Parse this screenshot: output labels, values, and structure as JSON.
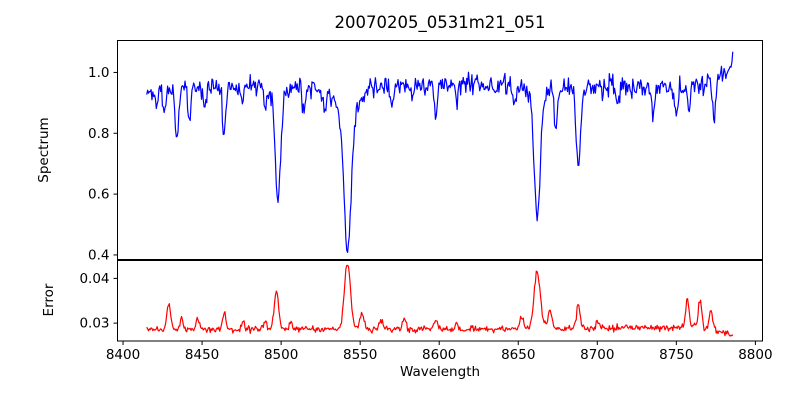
{
  "figure": {
    "title": "20070205_0531m21_051",
    "background_color": "#ffffff",
    "axis_color": "#000000"
  },
  "xaxis": {
    "label": "Wavelength",
    "xlim": [
      8396.5,
      8804.5
    ],
    "ticks": [
      {
        "value": 8400,
        "label": "8400"
      },
      {
        "value": 8450,
        "label": "8450"
      },
      {
        "value": 8500,
        "label": "8500"
      },
      {
        "value": 8550,
        "label": "8550"
      },
      {
        "value": 8600,
        "label": "8600"
      },
      {
        "value": 8650,
        "label": "8650"
      },
      {
        "value": 8700,
        "label": "8700"
      },
      {
        "value": 8750,
        "label": "8750"
      },
      {
        "value": 8800,
        "label": "8800"
      }
    ]
  },
  "chart_data": [
    {
      "type": "line",
      "panel": "top",
      "series_name": "spectrum",
      "ylabel": "Spectrum",
      "color": "#0000ff",
      "ylim": [
        0.385,
        1.105
      ],
      "yticks": [
        {
          "value": 0.4,
          "label": "0.4"
        },
        {
          "value": 0.6,
          "label": "0.6"
        },
        {
          "value": 0.8,
          "label": "0.8"
        },
        {
          "value": 1.0,
          "label": "1.0"
        }
      ],
      "x_range": [
        8415,
        8786
      ],
      "x_step": 0.55,
      "noise_sigma": 0.016,
      "continuum_nodes": [
        [
          8415,
          0.945
        ],
        [
          8445,
          0.952
        ],
        [
          8475,
          0.958
        ],
        [
          8520,
          0.948
        ],
        [
          8560,
          0.954
        ],
        [
          8600,
          0.96
        ],
        [
          8640,
          0.962
        ],
        [
          8665,
          0.955
        ],
        [
          8700,
          0.95
        ],
        [
          8745,
          0.95
        ],
        [
          8765,
          0.955
        ],
        [
          8778,
          0.99
        ],
        [
          8786,
          1.03
        ]
      ],
      "absorption_lines": [
        {
          "center": 8421,
          "depth": 0.05,
          "sigma": 0.9
        },
        {
          "center": 8426,
          "depth": 0.09,
          "sigma": 0.9
        },
        {
          "center": 8434,
          "depth": 0.18,
          "sigma": 1.1
        },
        {
          "center": 8442,
          "depth": 0.1,
          "sigma": 0.9
        },
        {
          "center": 8452,
          "depth": 0.06,
          "sigma": 0.9
        },
        {
          "center": 8464,
          "depth": 0.17,
          "sigma": 1.0
        },
        {
          "center": 8475,
          "depth": 0.05,
          "sigma": 0.9
        },
        {
          "center": 8490,
          "depth": 0.06,
          "sigma": 0.9
        },
        {
          "center": 8498,
          "depth": 0.33,
          "sigma": 1.6
        },
        {
          "center": 8498,
          "depth": 0.05,
          "sigma": 4.0
        },
        {
          "center": 8514,
          "depth": 0.065,
          "sigma": 1.0
        },
        {
          "center": 8527,
          "depth": 0.055,
          "sigma": 1.0
        },
        {
          "center": 8542,
          "depth": 0.43,
          "sigma": 2.2
        },
        {
          "center": 8542,
          "depth": 0.11,
          "sigma": 6.0
        },
        {
          "center": 8570,
          "depth": 0.065,
          "sigma": 1.0
        },
        {
          "center": 8582,
          "depth": 0.05,
          "sigma": 0.9
        },
        {
          "center": 8598,
          "depth": 0.09,
          "sigma": 1.2
        },
        {
          "center": 8611,
          "depth": 0.065,
          "sigma": 1.0
        },
        {
          "center": 8648,
          "depth": 0.08,
          "sigma": 1.0
        },
        {
          "center": 8662,
          "depth": 0.39,
          "sigma": 1.8
        },
        {
          "center": 8662,
          "depth": 0.055,
          "sigma": 4.0
        },
        {
          "center": 8674,
          "depth": 0.145,
          "sigma": 1.2
        },
        {
          "center": 8688,
          "depth": 0.245,
          "sigma": 1.5
        },
        {
          "center": 8713,
          "depth": 0.05,
          "sigma": 0.9
        },
        {
          "center": 8735,
          "depth": 0.075,
          "sigma": 1.0
        },
        {
          "center": 8750,
          "depth": 0.08,
          "sigma": 1.0
        },
        {
          "center": 8758,
          "depth": 0.07,
          "sigma": 0.9
        },
        {
          "center": 8774,
          "depth": 0.12,
          "sigma": 1.1
        }
      ]
    },
    {
      "type": "line",
      "panel": "bottom",
      "series_name": "error",
      "ylabel": "Error",
      "color": "#ff0000",
      "ylim": [
        0.026,
        0.044
      ],
      "yticks": [
        {
          "value": 0.03,
          "label": "0.03"
        },
        {
          "value": 0.04,
          "label": "0.04"
        }
      ],
      "x_range": [
        8415,
        8786
      ],
      "x_step": 0.55,
      "noise_sigma": 0.00035,
      "continuum_nodes": [
        [
          8415,
          0.0284
        ],
        [
          8450,
          0.0286
        ],
        [
          8550,
          0.0286
        ],
        [
          8650,
          0.0287
        ],
        [
          8735,
          0.0289
        ],
        [
          8760,
          0.0293
        ],
        [
          8772,
          0.0288
        ],
        [
          8780,
          0.0278
        ],
        [
          8786,
          0.0273
        ]
      ],
      "peaks": [
        {
          "center": 8429,
          "height": 0.0062,
          "sigma": 1.2
        },
        {
          "center": 8437,
          "height": 0.0028,
          "sigma": 0.9
        },
        {
          "center": 8447,
          "height": 0.0022,
          "sigma": 0.9
        },
        {
          "center": 8464,
          "height": 0.0036,
          "sigma": 1.1
        },
        {
          "center": 8476,
          "height": 0.0016,
          "sigma": 0.9
        },
        {
          "center": 8490,
          "height": 0.002,
          "sigma": 0.9
        },
        {
          "center": 8497,
          "height": 0.0082,
          "sigma": 1.4
        },
        {
          "center": 8506,
          "height": 0.002,
          "sigma": 0.9
        },
        {
          "center": 8542,
          "height": 0.0147,
          "sigma": 1.9
        },
        {
          "center": 8551,
          "height": 0.0038,
          "sigma": 1.4
        },
        {
          "center": 8563,
          "height": 0.002,
          "sigma": 1.0
        },
        {
          "center": 8578,
          "height": 0.0026,
          "sigma": 1.1
        },
        {
          "center": 8598,
          "height": 0.0022,
          "sigma": 1.0
        },
        {
          "center": 8611,
          "height": 0.0016,
          "sigma": 0.9
        },
        {
          "center": 8652,
          "height": 0.0028,
          "sigma": 1.0
        },
        {
          "center": 8662,
          "height": 0.0128,
          "sigma": 1.9
        },
        {
          "center": 8670,
          "height": 0.0042,
          "sigma": 1.2
        },
        {
          "center": 8688,
          "height": 0.0052,
          "sigma": 1.2
        },
        {
          "center": 8700,
          "height": 0.0015,
          "sigma": 0.9
        },
        {
          "center": 8757,
          "height": 0.006,
          "sigma": 1.0
        },
        {
          "center": 8765,
          "height": 0.0062,
          "sigma": 1.0
        },
        {
          "center": 8772,
          "height": 0.0042,
          "sigma": 1.0
        }
      ]
    }
  ]
}
